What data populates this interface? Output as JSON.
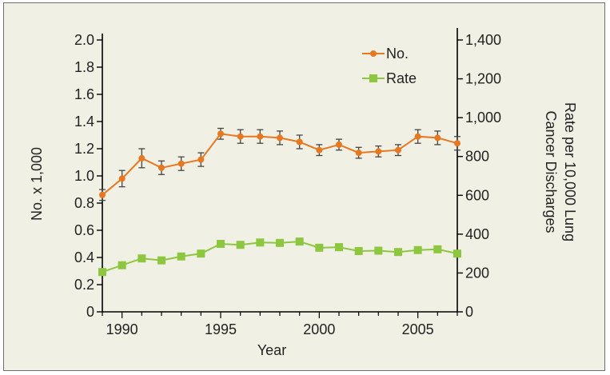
{
  "chart_data": {
    "type": "line",
    "title": "",
    "xlabel": "Year",
    "ylabel_left": "No. x 1,000",
    "ylabel_right_line1": "Rate per 10,000 Lung",
    "ylabel_right_line2": "Cancer Discharges",
    "xlim": [
      1989,
      2007
    ],
    "ylim_left": [
      0,
      2.0
    ],
    "ylim_right": [
      0,
      1400
    ],
    "x_ticks": [
      1990,
      1995,
      2000,
      2005
    ],
    "y_left_ticks": [
      "0",
      "0.2",
      "0.4",
      "0.6",
      "0.8",
      "1.0",
      "1.2",
      "1.4",
      "1.6",
      "1.8",
      "2.0"
    ],
    "y_right_ticks": [
      "0",
      "200",
      "400",
      "600",
      "800",
      "1,000",
      "1,200",
      "1,400"
    ],
    "legend_position": "top-right",
    "series": [
      {
        "name": "No.",
        "axis": "left",
        "color": "#e87722",
        "marker": "circle",
        "x": [
          1989,
          1990,
          1991,
          1992,
          1993,
          1994,
          1995,
          1996,
          1997,
          1998,
          1999,
          2000,
          2001,
          2002,
          2003,
          2004,
          2005,
          2006,
          2007
        ],
        "values": [
          0.86,
          0.98,
          1.13,
          1.06,
          1.09,
          1.12,
          1.31,
          1.29,
          1.29,
          1.28,
          1.25,
          1.19,
          1.23,
          1.17,
          1.18,
          1.19,
          1.29,
          1.28,
          1.24
        ],
        "error": [
          0.04,
          0.06,
          0.07,
          0.05,
          0.05,
          0.05,
          0.04,
          0.05,
          0.05,
          0.05,
          0.05,
          0.04,
          0.04,
          0.04,
          0.04,
          0.04,
          0.05,
          0.05,
          0.05
        ]
      },
      {
        "name": "Rate",
        "axis": "right",
        "color": "#8dc63f",
        "marker": "square",
        "x": [
          1989,
          1990,
          1991,
          1992,
          1993,
          1994,
          1995,
          1996,
          1997,
          1998,
          1999,
          2000,
          2001,
          2002,
          2003,
          2004,
          2005,
          2006,
          2007
        ],
        "values": [
          205,
          240,
          275,
          265,
          285,
          300,
          350,
          345,
          357,
          355,
          362,
          330,
          333,
          313,
          315,
          308,
          318,
          322,
          300
        ]
      }
    ]
  }
}
